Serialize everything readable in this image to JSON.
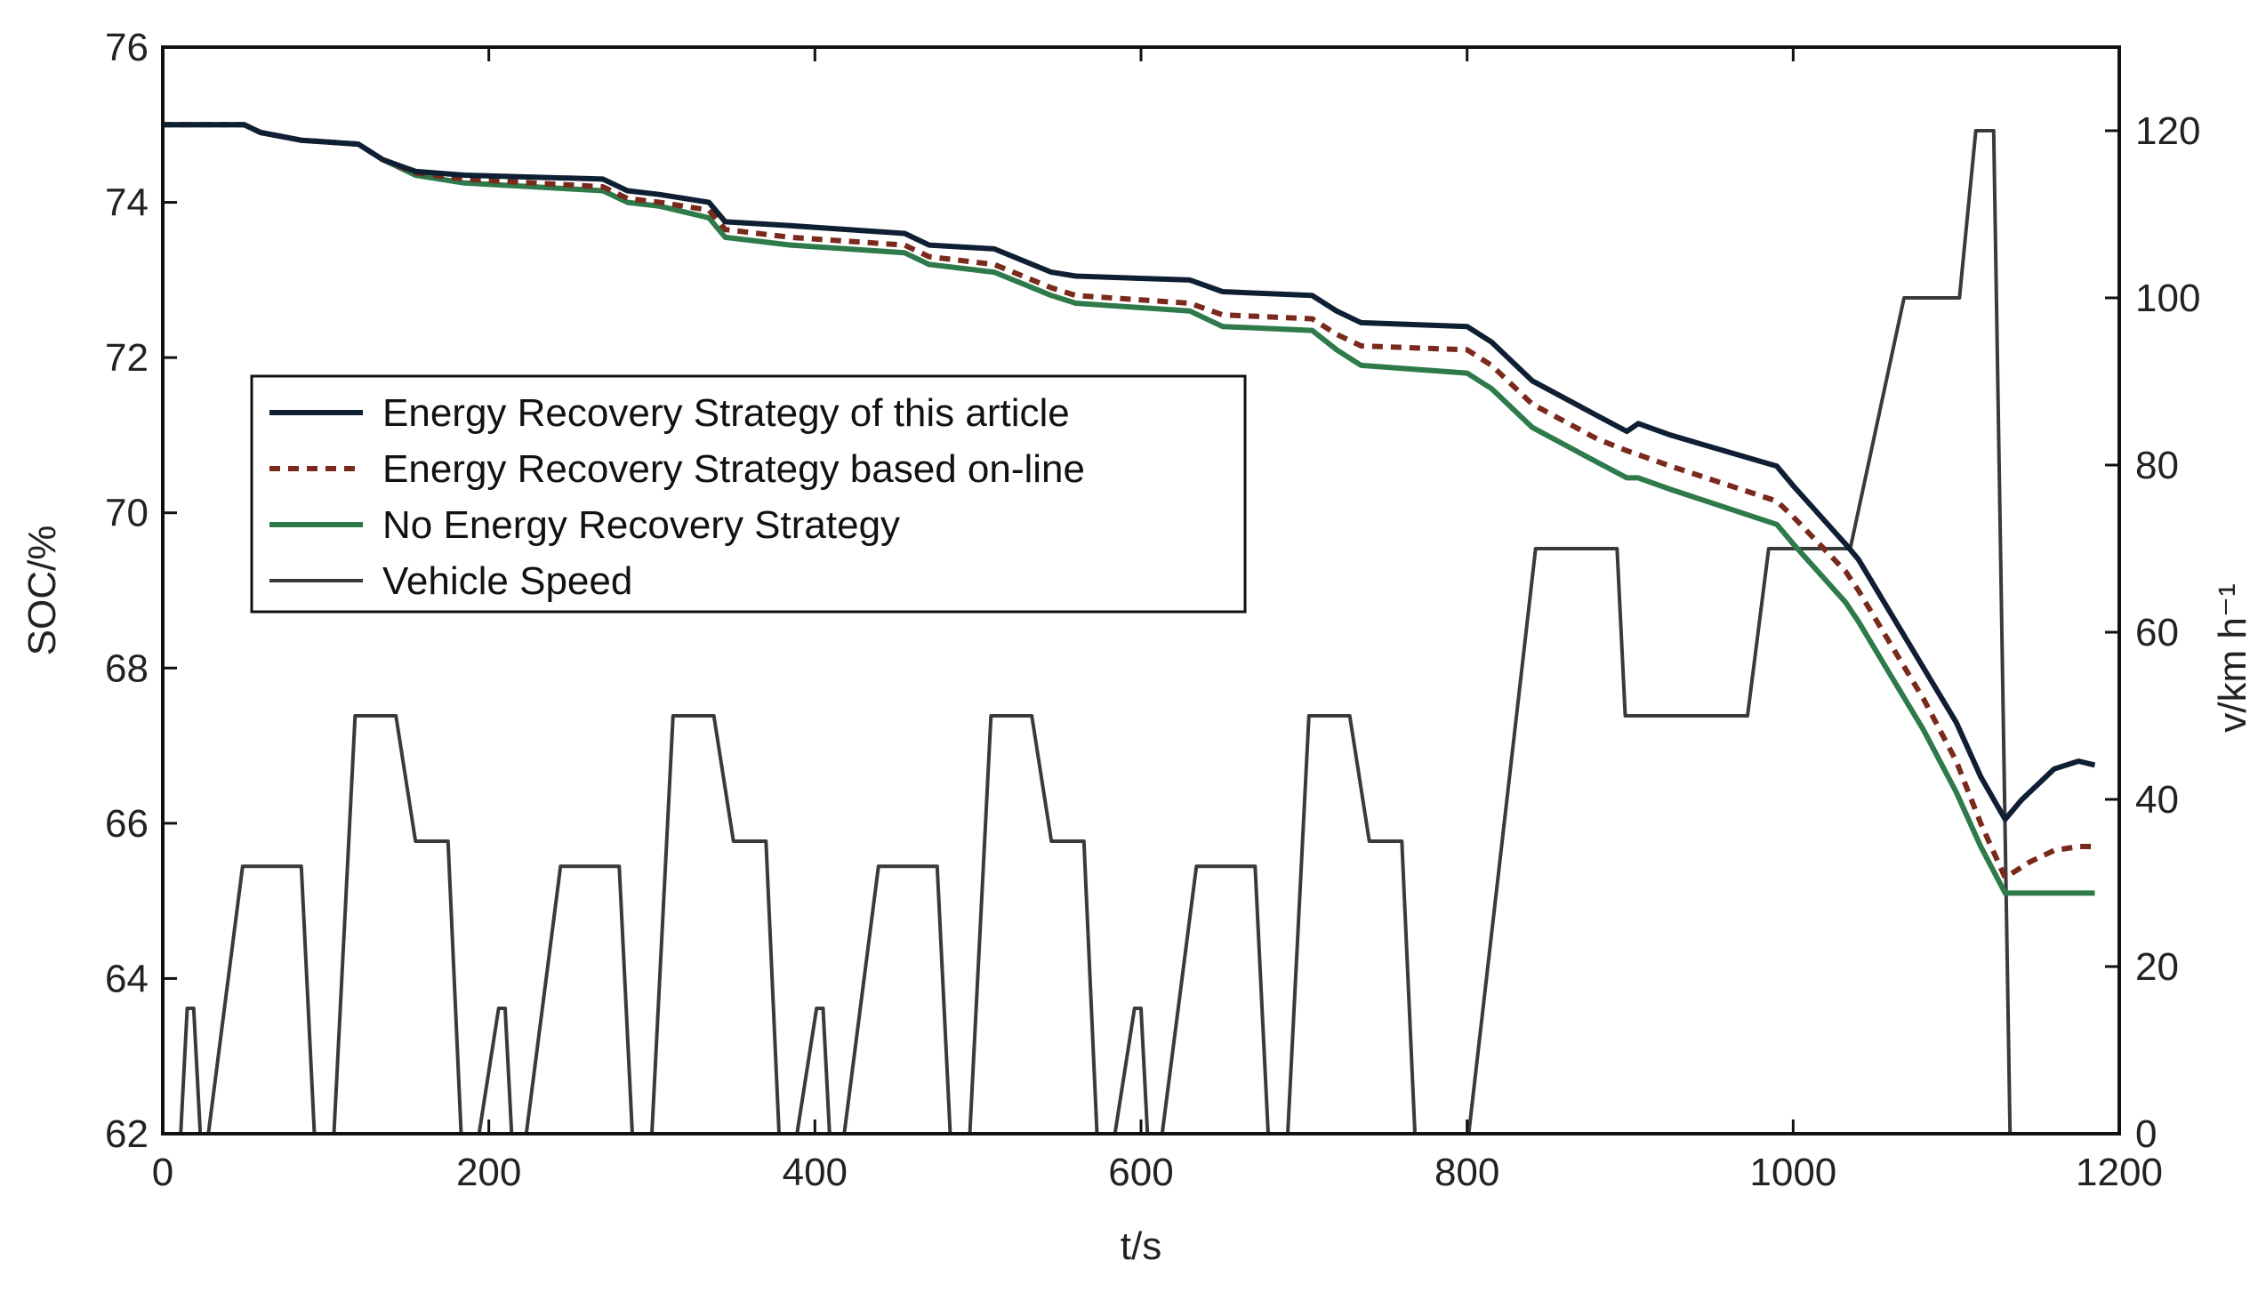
{
  "chart_data": {
    "type": "line",
    "title": "",
    "xlabel": "t/s",
    "ylabel_left": "SOC/%",
    "ylabel_right": "v/km h⁻¹",
    "xlim": [
      0,
      1200
    ],
    "ylim_left": [
      62,
      76
    ],
    "ylim_right": [
      0,
      130
    ],
    "xticks": [
      0,
      200,
      400,
      600,
      800,
      1000,
      1200
    ],
    "yticks_left": [
      62,
      64,
      66,
      68,
      70,
      72,
      74,
      76
    ],
    "yticks_right": [
      0,
      20,
      40,
      60,
      80,
      100,
      120
    ],
    "grid": false,
    "legend_position": "center-left",
    "series": [
      {
        "name": "Energy Recovery Strategy of this article",
        "axis": "left",
        "color": "#0f1f33",
        "style": "solid",
        "x": [
          0,
          50,
          60,
          85,
          120,
          135,
          155,
          185,
          270,
          285,
          305,
          335,
          345,
          385,
          455,
          470,
          510,
          545,
          560,
          630,
          650,
          705,
          720,
          735,
          800,
          815,
          840,
          880,
          898,
          905,
          925,
          990,
          1000,
          1032,
          1040,
          1060,
          1080,
          1100,
          1115,
          1130,
          1140,
          1160,
          1175,
          1185
        ],
        "y": [
          75.0,
          75.0,
          74.9,
          74.8,
          74.75,
          74.55,
          74.4,
          74.35,
          74.3,
          74.15,
          74.1,
          74.0,
          73.75,
          73.7,
          73.6,
          73.45,
          73.4,
          73.1,
          73.05,
          73.0,
          72.85,
          72.8,
          72.6,
          72.45,
          72.4,
          72.2,
          71.7,
          71.25,
          71.05,
          71.15,
          71.0,
          70.6,
          70.35,
          69.6,
          69.4,
          68.7,
          68.0,
          67.3,
          66.6,
          66.05,
          66.3,
          66.7,
          66.8,
          66.75
        ]
      },
      {
        "name": "Energy Recovery Strategy based on-line",
        "axis": "left",
        "color": "#7a2a1c",
        "style": "dashed",
        "x": [
          0,
          50,
          60,
          85,
          120,
          135,
          155,
          185,
          270,
          285,
          305,
          335,
          345,
          385,
          455,
          470,
          510,
          545,
          560,
          630,
          650,
          705,
          720,
          735,
          800,
          815,
          840,
          880,
          898,
          905,
          925,
          990,
          1000,
          1032,
          1040,
          1060,
          1080,
          1100,
          1115,
          1130,
          1145,
          1160,
          1175,
          1185
        ],
        "y": [
          75.0,
          75.0,
          74.9,
          74.8,
          74.75,
          74.55,
          74.38,
          74.3,
          74.2,
          74.05,
          74.0,
          73.9,
          73.65,
          73.55,
          73.45,
          73.3,
          73.2,
          72.9,
          72.8,
          72.7,
          72.55,
          72.5,
          72.3,
          72.15,
          72.1,
          71.9,
          71.4,
          70.95,
          70.8,
          70.75,
          70.6,
          70.15,
          69.95,
          69.25,
          69.0,
          68.3,
          67.6,
          66.8,
          66.0,
          65.3,
          65.5,
          65.65,
          65.7,
          65.7
        ]
      },
      {
        "name": "No Energy Recovery Strategy",
        "axis": "left",
        "color": "#2e7a4a",
        "style": "solid",
        "x": [
          0,
          50,
          60,
          85,
          120,
          135,
          155,
          185,
          270,
          285,
          305,
          335,
          345,
          385,
          455,
          470,
          510,
          545,
          560,
          630,
          650,
          705,
          720,
          735,
          800,
          815,
          840,
          880,
          898,
          905,
          925,
          990,
          1000,
          1032,
          1040,
          1060,
          1080,
          1100,
          1115,
          1130,
          1145,
          1160,
          1175,
          1185
        ],
        "y": [
          75.0,
          75.0,
          74.9,
          74.8,
          74.75,
          74.55,
          74.35,
          74.25,
          74.15,
          74.0,
          73.95,
          73.8,
          73.55,
          73.45,
          73.35,
          73.2,
          73.1,
          72.8,
          72.7,
          72.6,
          72.4,
          72.35,
          72.1,
          71.9,
          71.8,
          71.6,
          71.1,
          70.65,
          70.45,
          70.45,
          70.3,
          69.85,
          69.6,
          68.85,
          68.6,
          67.9,
          67.2,
          66.4,
          65.7,
          65.1,
          65.1,
          65.1,
          65.1,
          65.1
        ]
      },
      {
        "name": "Vehicle Speed",
        "axis": "right",
        "color": "#3a3a3a",
        "style": "solid",
        "x": [
          0,
          11,
          15,
          19,
          23,
          28,
          49,
          61,
          85,
          93,
          105,
          118,
          143,
          155,
          163,
          175,
          183,
          194,
          206,
          210,
          214,
          218,
          223,
          244,
          256,
          280,
          288,
          300,
          313,
          338,
          350,
          358,
          370,
          378,
          389,
          401,
          405,
          409,
          413,
          418,
          439,
          451,
          475,
          483,
          495,
          508,
          533,
          545,
          553,
          565,
          573,
          584,
          596,
          600,
          604,
          608,
          613,
          634,
          646,
          670,
          678,
          690,
          703,
          728,
          740,
          748,
          760,
          768,
          801,
          842,
          892,
          897,
          972,
          985,
          1035,
          1068,
          1102,
          1112,
          1123,
          1133,
          1170
        ],
        "y": [
          0,
          0,
          15,
          15,
          0,
          0,
          32,
          32,
          32,
          0,
          0,
          50,
          50,
          35,
          35,
          35,
          0,
          0,
          15,
          15,
          0,
          0,
          0,
          32,
          32,
          32,
          0,
          0,
          50,
          50,
          35,
          35,
          35,
          0,
          0,
          15,
          15,
          0,
          0,
          0,
          32,
          32,
          32,
          0,
          0,
          50,
          50,
          35,
          35,
          35,
          0,
          0,
          15,
          15,
          0,
          0,
          0,
          32,
          32,
          32,
          0,
          0,
          50,
          50,
          35,
          35,
          35,
          0,
          0,
          70,
          70,
          50,
          50,
          70,
          70,
          100,
          100,
          120,
          120,
          0,
          0
        ]
      }
    ]
  }
}
